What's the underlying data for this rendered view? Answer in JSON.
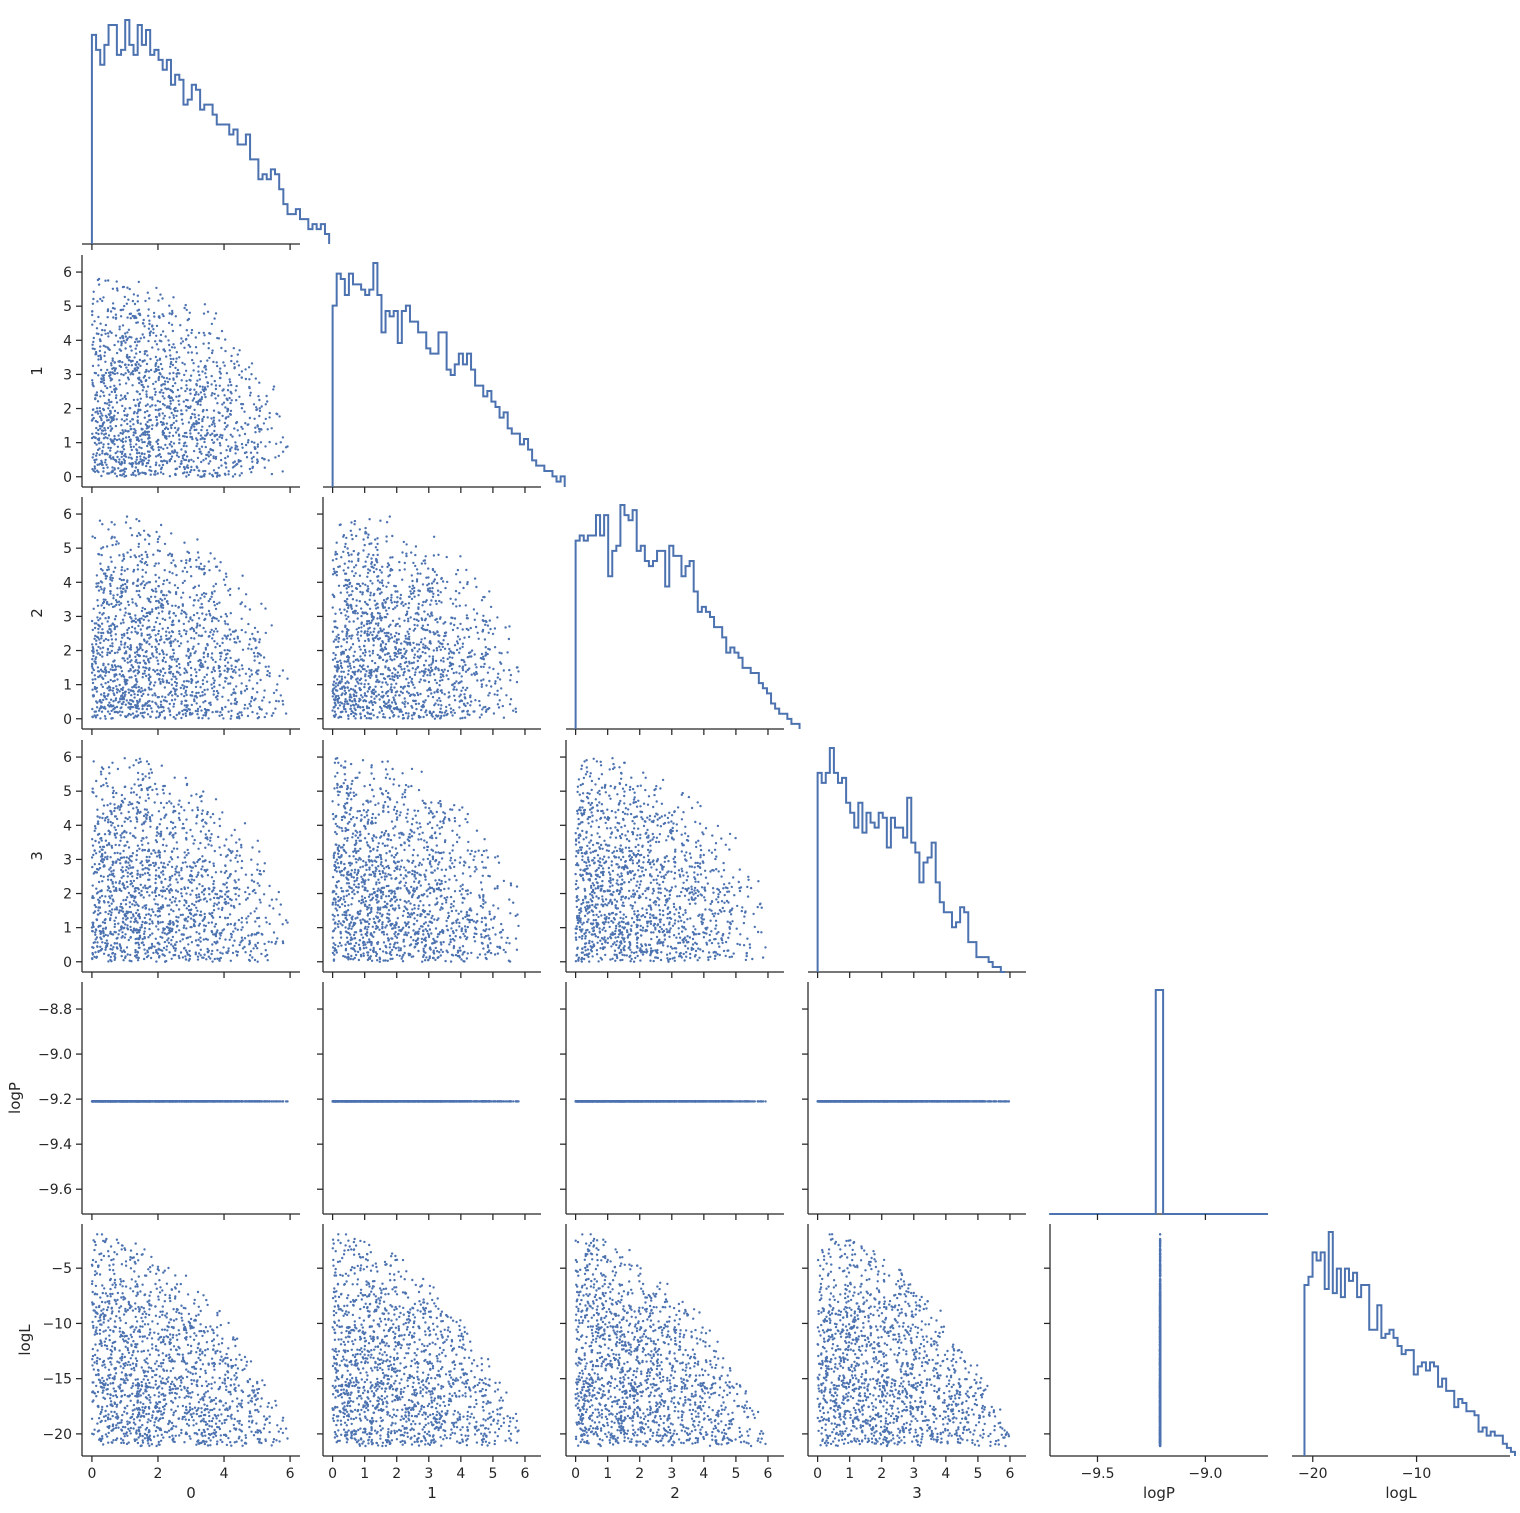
{
  "chart_data": {
    "type": "scatter",
    "title": "",
    "variables": [
      "0",
      "1",
      "2",
      "3",
      "logP",
      "logL"
    ],
    "layout": "corner pairplot (lower triangle scatter, diagonal step histograms)",
    "grid": false,
    "color": "#4c72b0",
    "n_points_approx": 1500,
    "axes": {
      "0": {
        "range": [
          -0.3,
          6.3
        ],
        "ticks": [
          0,
          2,
          4,
          6
        ]
      },
      "1": {
        "range": [
          -0.3,
          6.5
        ],
        "ticks": [
          0,
          1,
          2,
          3,
          4,
          5,
          6
        ]
      },
      "2": {
        "range": [
          -0.3,
          6.5
        ],
        "ticks": [
          0,
          1,
          2,
          3,
          4,
          5,
          6
        ]
      },
      "3": {
        "range": [
          -0.3,
          6.5
        ],
        "ticks": [
          0,
          1,
          2,
          3,
          4,
          5,
          6
        ]
      },
      "logP": {
        "range": [
          -9.71,
          -8.68
        ],
        "ticks": [
          -9.6,
          -9.4,
          -9.2,
          -9.0,
          -8.8
        ],
        "xrange": [
          -9.72,
          -8.71
        ],
        "xticks": [
          -9.5,
          -9.0
        ],
        "constant_value": -9.21
      },
      "logL": {
        "range": [
          -22.0,
          -1.0
        ],
        "ticks": [
          -20,
          -15,
          -10,
          -5
        ],
        "xrange": [
          -22.0,
          -1.0
        ],
        "xticks": [
          -20,
          -10
        ]
      }
    },
    "tick_labels": {
      "0": [
        "0",
        "2",
        "4",
        "6"
      ],
      "1": [
        "0",
        "1",
        "2",
        "3",
        "4",
        "5",
        "6"
      ],
      "2": [
        "0",
        "1",
        "2",
        "3",
        "4",
        "5",
        "6"
      ],
      "3": [
        "0",
        "1",
        "2",
        "3",
        "4",
        "5",
        "6"
      ],
      "logP_y": [
        "−9.6",
        "−9.4",
        "−9.2",
        "−9.0",
        "−8.8"
      ],
      "logP_x": [
        "−9.5",
        "−9.0"
      ],
      "logL_y": [
        "−20",
        "−15",
        "−10",
        "−5"
      ],
      "logL_x": [
        "−20",
        "−10"
      ]
    },
    "xlabels": [
      "0",
      "1",
      "2",
      "3",
      "logP",
      "logL"
    ],
    "ylabels": [
      "1",
      "2",
      "3",
      "logP",
      "logL"
    ],
    "histograms": {
      "0": {
        "bin_edges_start": 0.0,
        "bin_width": 0.126,
        "counts": [
          42,
          39,
          36,
          40,
          44,
          44,
          38,
          39,
          45,
          40,
          38,
          44,
          40,
          43,
          38,
          39,
          37,
          35,
          37,
          32,
          34,
          33,
          28,
          29,
          32,
          31,
          27,
          28,
          28,
          26,
          24,
          24,
          24,
          22,
          23,
          20,
          20,
          22,
          17,
          17,
          13,
          14,
          13,
          15,
          14,
          11,
          8,
          6,
          6,
          7,
          5,
          5,
          3,
          4,
          3,
          4,
          2
        ]
      },
      "1": {
        "bin_edges_start": 0.0,
        "bin_width": 0.127,
        "counts": [
          34,
          40,
          39,
          36,
          40,
          38,
          38,
          37,
          36,
          37,
          42,
          36,
          29,
          33,
          32,
          33,
          27,
          33,
          34,
          31,
          31,
          29,
          29,
          26,
          25,
          25,
          29,
          29,
          22,
          21,
          23,
          25,
          23,
          25,
          22,
          19,
          19,
          17,
          18,
          16,
          15,
          13,
          14,
          11,
          10,
          10,
          8,
          9,
          7,
          5,
          4,
          4,
          3,
          3,
          2,
          1,
          2
        ]
      },
      "2": {
        "bin_edges_start": 0.0,
        "bin_width": 0.127,
        "counts": [
          37,
          38,
          37,
          38,
          38,
          42,
          38,
          42,
          30,
          35,
          36,
          44,
          42,
          41,
          43,
          35,
          36,
          33,
          32,
          33,
          35,
          35,
          28,
          36,
          34,
          34,
          30,
          32,
          33,
          27,
          23,
          24,
          23,
          22,
          20,
          20,
          18,
          15,
          16,
          15,
          14,
          12,
          12,
          11,
          11,
          9,
          8,
          7,
          5,
          4,
          3,
          3,
          2,
          1,
          1
        ]
      },
      "3": {
        "bin_edges_start": 0.0,
        "bin_width": 0.127,
        "counts": [
          40,
          38,
          40,
          45,
          40,
          38,
          39,
          34,
          32,
          29,
          34,
          28,
          32,
          30,
          29,
          32,
          31,
          25,
          31,
          29,
          29,
          27,
          35,
          26,
          24,
          18,
          22,
          23,
          26,
          18,
          14,
          12,
          12,
          9,
          10,
          13,
          12,
          6,
          6,
          3,
          3,
          3,
          2,
          1,
          1,
          0
        ]
      },
      "logP": {
        "bins": [
          -9.724,
          -9.23,
          -9.196,
          -8.71
        ],
        "counts": [
          0,
          1,
          0
        ]
      },
      "logL": {
        "bin_edges_start": -20.8,
        "bin_width": 0.39,
        "counts": [
          42,
          44,
          50,
          48,
          50,
          41,
          55,
          40,
          46,
          39,
          46,
          43,
          45,
          39,
          42,
          42,
          31,
          31,
          37,
          29,
          30,
          31,
          29,
          27,
          25,
          26,
          26,
          20,
          22,
          23,
          21,
          23,
          22,
          17,
          19,
          16,
          16,
          12,
          14,
          13,
          11,
          11,
          10,
          6,
          7,
          5,
          6,
          5,
          5,
          3,
          2,
          1
        ]
      }
    },
    "scatter_pattern": "params 0–3 lie in a radial region (sum of squares ≤ ~6.3²); logP is constant at about −9.21; logL falls roughly linearly with the summed squared parameters, from about −1.7 down to about −21"
  }
}
